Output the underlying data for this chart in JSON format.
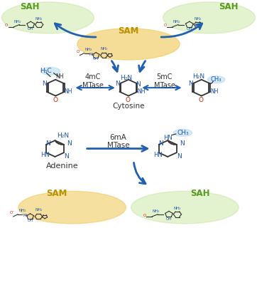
{
  "background_color": "#ffffff",
  "sam_color": "#f0cc60",
  "sah_color": "#c8e6a0",
  "arrow_color": "#2060b0",
  "blue_text": "#2255aa",
  "green_label": "#5a9a20",
  "gold_label": "#b89000",
  "black": "#333333",
  "red": "#cc2200",
  "light_blue_bg": "#b8ddf0",
  "top": {
    "sah_left_label": "SAH",
    "sah_right_label": "SAH",
    "sam_label": "SAM",
    "cytosine_label": "Cytosine",
    "left_enzyme": "4mC\nMTase",
    "right_enzyme": "5mC\nMTase"
  },
  "bottom": {
    "adenine_label": "Adenine",
    "enzyme": "6mA\nMTase",
    "sam_label": "SAM",
    "sah_label": "SAH"
  }
}
